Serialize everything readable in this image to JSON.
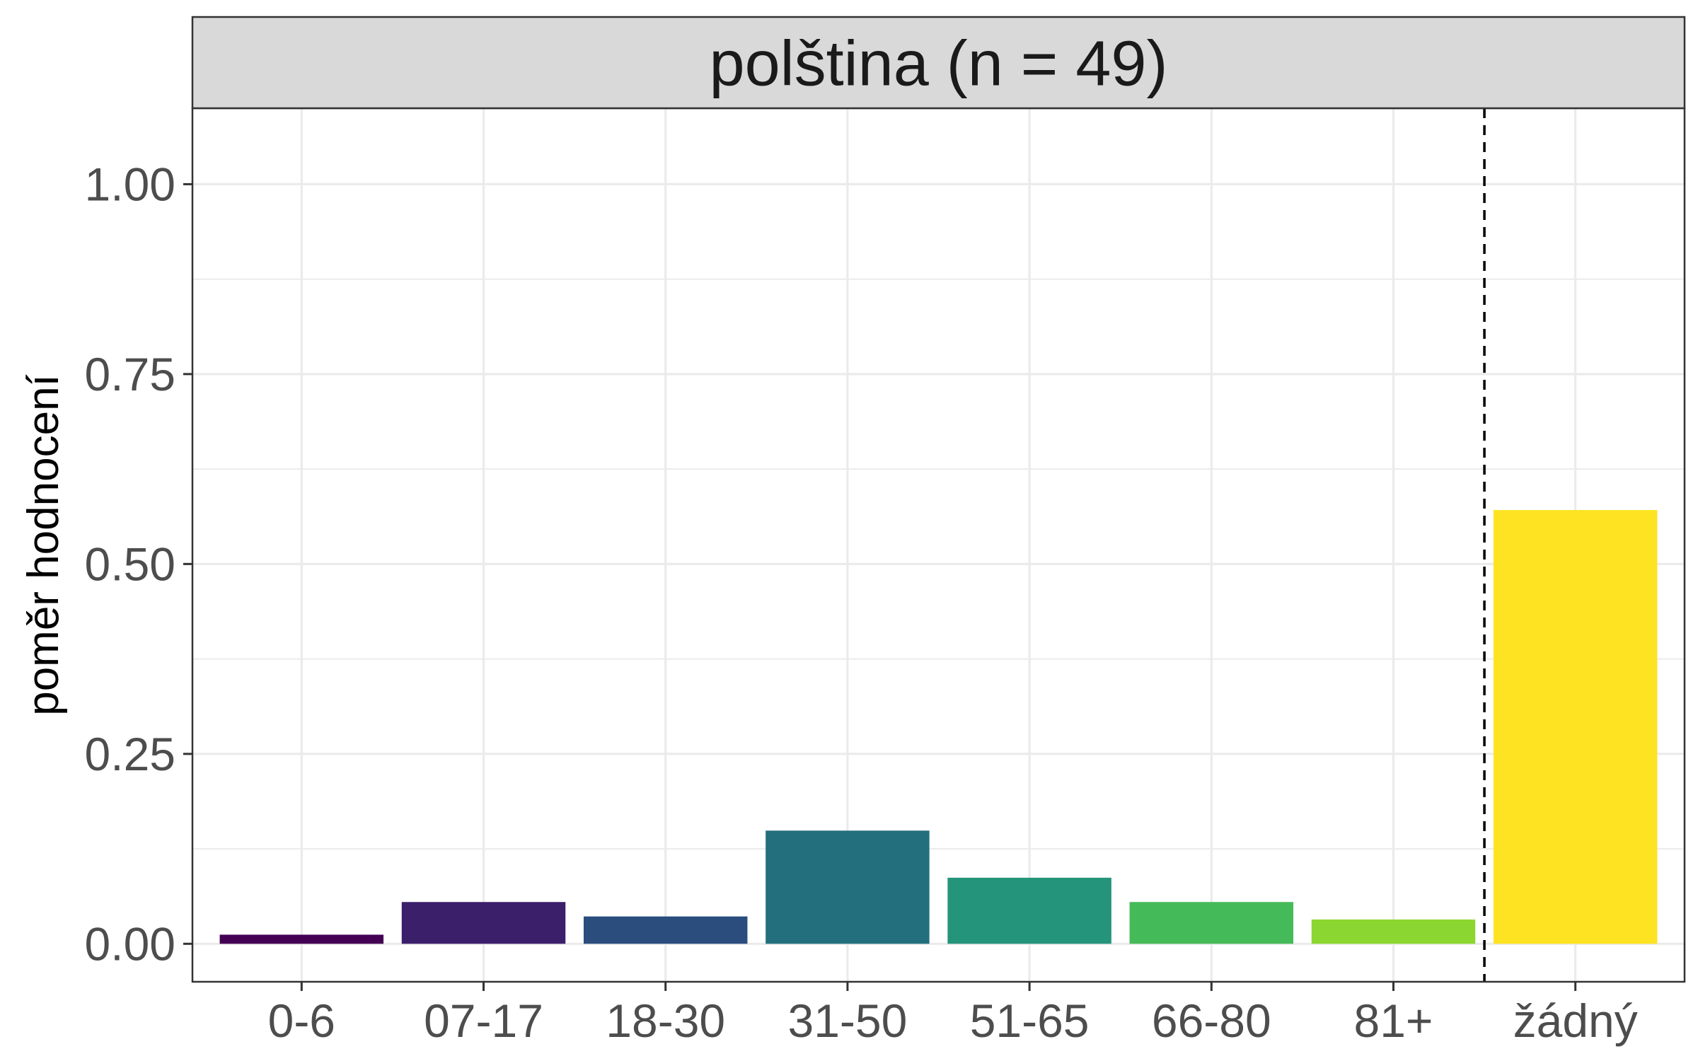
{
  "chart_data": {
    "type": "bar",
    "title": "polština (n = 49)",
    "xlabel": "",
    "ylabel": "poměr hodnocení",
    "categories": [
      "0-6",
      "07-17",
      "18-30",
      "31-50",
      "51-65",
      "66-80",
      "81+",
      "žádný"
    ],
    "values": [
      0.012,
      0.055,
      0.036,
      0.149,
      0.087,
      0.055,
      0.032,
      0.571
    ],
    "colors": [
      "#440154",
      "#3B1F6B",
      "#2A4D7D",
      "#236F7D",
      "#24947A",
      "#45BA59",
      "#8CD631",
      "#FDE321"
    ],
    "ylim": [
      -0.05,
      1.1
    ],
    "yticks": [
      "0.00",
      "0.25",
      "0.50",
      "0.75",
      "1.00"
    ],
    "ytick_values": [
      0,
      0.25,
      0.5,
      0.75,
      1.0
    ],
    "separator_after_category": "81+",
    "separator_style": "dashed",
    "grid": true,
    "legend": "none"
  }
}
